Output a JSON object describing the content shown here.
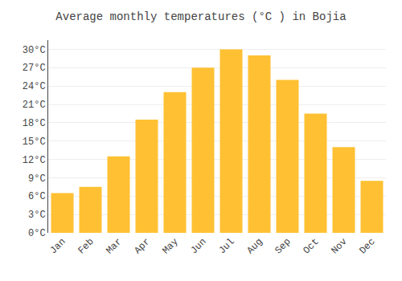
{
  "chart_data": {
    "type": "bar",
    "title": "Average monthly temperatures (°C ) in Bojia",
    "categories": [
      "Jan",
      "Feb",
      "Mar",
      "Apr",
      "May",
      "Jun",
      "Jul",
      "Aug",
      "Sep",
      "Oct",
      "Nov",
      "Dec"
    ],
    "values": [
      6.5,
      7.5,
      12.5,
      18.5,
      23.0,
      27.0,
      30.0,
      29.0,
      25.0,
      19.5,
      14.0,
      8.5
    ],
    "color": "#FFC133",
    "ylim": [
      0,
      31.5
    ],
    "yticks": [
      {
        "value": 0,
        "label": "0°C"
      },
      {
        "value": 3,
        "label": "3°C"
      },
      {
        "value": 6,
        "label": "6°C"
      },
      {
        "value": 9,
        "label": "9°C"
      },
      {
        "value": 12,
        "label": "12°C"
      },
      {
        "value": 15,
        "label": "15°C"
      },
      {
        "value": 18,
        "label": "18°C"
      },
      {
        "value": 21,
        "label": "21°C"
      },
      {
        "value": 24,
        "label": "24°C"
      },
      {
        "value": 27,
        "label": "27°C"
      },
      {
        "value": 30,
        "label": "30°C"
      }
    ],
    "grid": true
  }
}
